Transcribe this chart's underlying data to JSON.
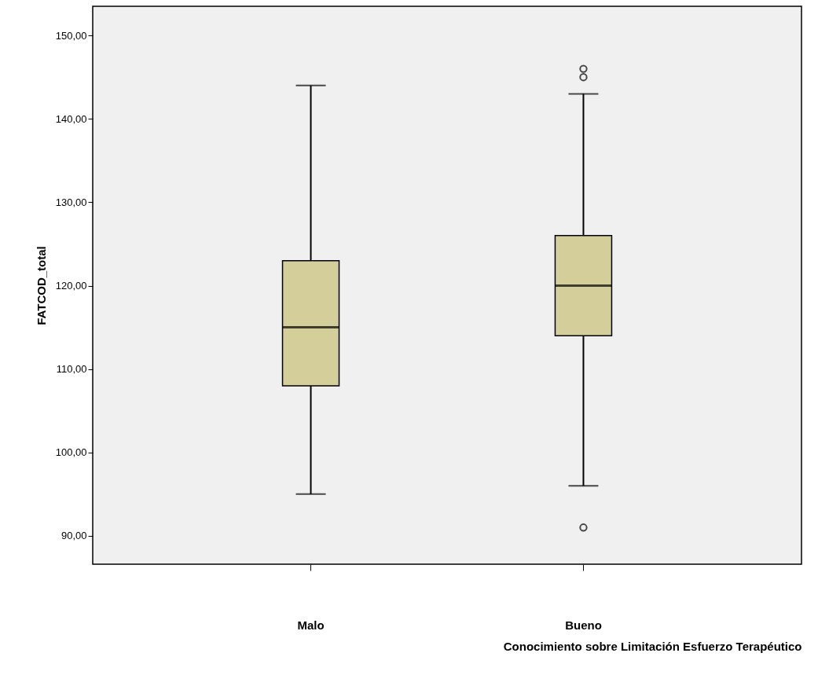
{
  "chart_data": {
    "type": "box",
    "categories": [
      "Malo",
      "Bueno"
    ],
    "xlabel": "Conocimiento sobre Limitación Esfuerzo Terapéutico",
    "ylabel": "FATCOD_total",
    "ylim": [
      86.6,
      153.5
    ],
    "yticks": [
      {
        "value": 90,
        "label": "90,00"
      },
      {
        "value": 100,
        "label": "100,00"
      },
      {
        "value": 110,
        "label": "110,00"
      },
      {
        "value": 120,
        "label": "120,00"
      },
      {
        "value": 130,
        "label": "130,00"
      },
      {
        "value": 140,
        "label": "140,00"
      },
      {
        "value": 150,
        "label": "150,00"
      }
    ],
    "grid": false,
    "series": [
      {
        "color": "#d3ce9a",
        "boxes": [
          {
            "low": 95,
            "q1": 108,
            "median": 115,
            "q3": 123,
            "high": 144
          },
          {
            "low": 96,
            "q1": 114,
            "median": 120,
            "q3": 126,
            "high": 143,
            "outliers": [
              91,
              145,
              146
            ]
          }
        ]
      }
    ]
  }
}
